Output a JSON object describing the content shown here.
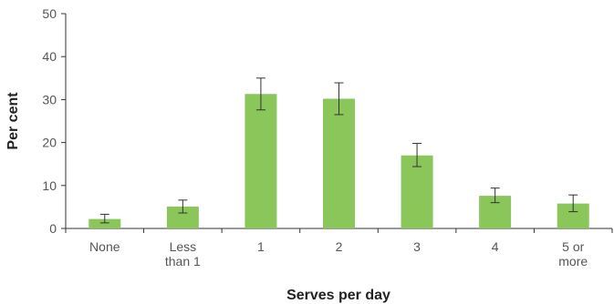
{
  "chart_data": {
    "type": "bar",
    "categories": [
      [
        "None"
      ],
      [
        "Less",
        "than 1"
      ],
      [
        "1"
      ],
      [
        "2"
      ],
      [
        "3"
      ],
      [
        "4"
      ],
      [
        "5 or",
        "more"
      ]
    ],
    "values": [
      2.2,
      5.1,
      31.3,
      30.2,
      17.0,
      7.6,
      5.8
    ],
    "error_low": [
      1.3,
      3.6,
      27.6,
      26.5,
      14.4,
      6.0,
      3.9
    ],
    "error_high": [
      3.3,
      6.6,
      35.0,
      33.9,
      19.8,
      9.4,
      7.8
    ],
    "xlabel": "Serves per day",
    "ylabel": "Per cent",
    "ylim": [
      0,
      50
    ],
    "yticks": [
      0,
      10,
      20,
      30,
      40,
      50
    ],
    "bar_color": "#8ac65a",
    "grid": false
  }
}
